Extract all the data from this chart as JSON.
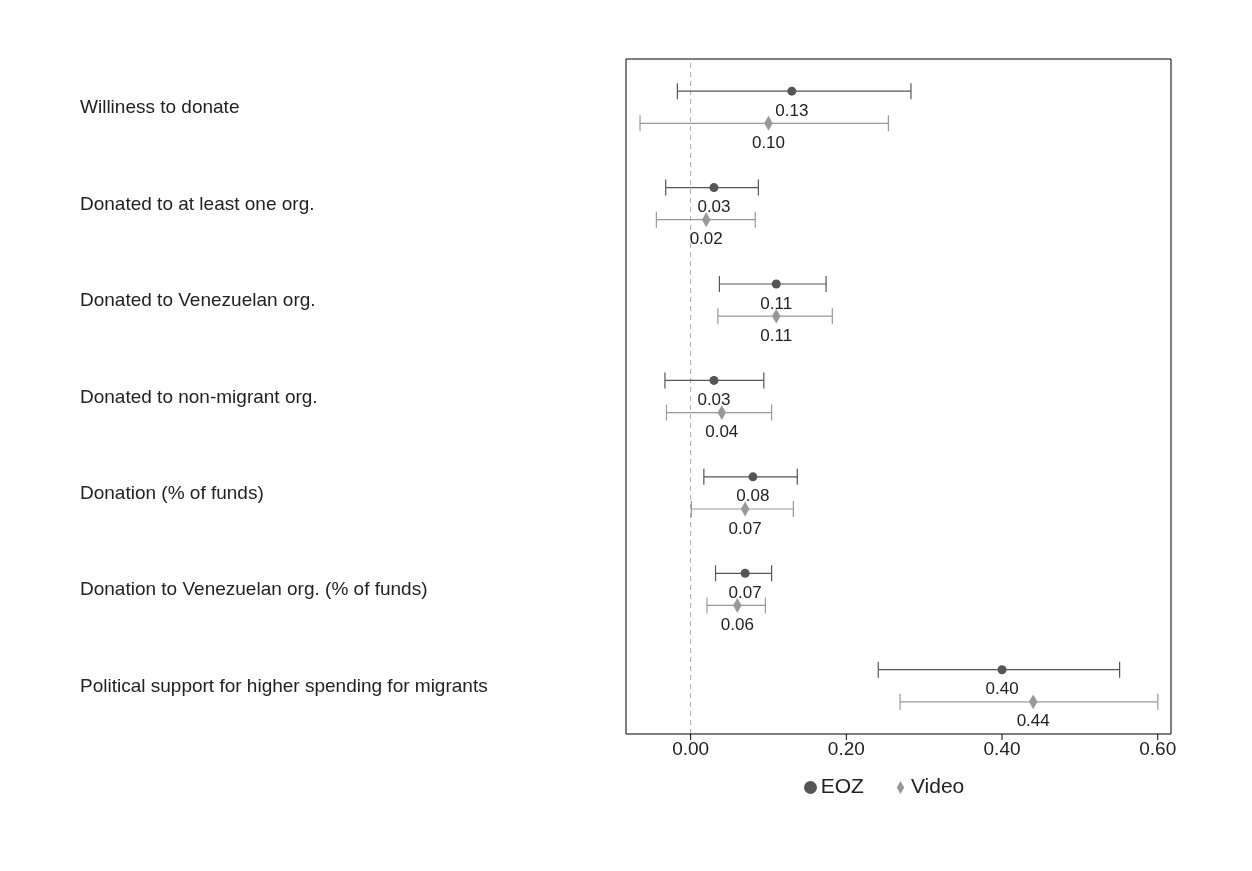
{
  "chart_data": {
    "type": "scatter",
    "orientation": "horizontal",
    "categories": [
      "Williness to donate",
      "Donated to at least one org.",
      "Donated to Venezuelan org.",
      "Donated to non-migrant org.",
      "Donation (% of funds)",
      "Donation to Venezuelan org. (% of funds)",
      "Political support for higher spending for migrants"
    ],
    "series": [
      {
        "name": "EOZ",
        "color": "#555555",
        "marker": "circle",
        "values": [
          0.13,
          0.03,
          0.11,
          0.03,
          0.08,
          0.07,
          0.4
        ],
        "value_labels": [
          "0.13",
          "0.03",
          "0.11",
          "0.03",
          "0.08",
          "0.07",
          "0.40"
        ],
        "errors": [
          [
            -0.017,
            0.283
          ],
          [
            -0.032,
            0.087
          ],
          [
            0.037,
            0.174
          ],
          [
            -0.033,
            0.094
          ],
          [
            0.017,
            0.137
          ],
          [
            0.032,
            0.104
          ],
          [
            0.241,
            0.551
          ]
        ]
      },
      {
        "name": "Video",
        "color": "#999999",
        "marker": "diamond",
        "values": [
          0.1,
          0.02,
          0.11,
          0.04,
          0.07,
          0.06,
          0.44
        ],
        "value_labels": [
          "0.10",
          "0.02",
          "0.11",
          "0.04",
          "0.07",
          "0.06",
          "0.44"
        ],
        "errors": [
          [
            -0.065,
            0.254
          ],
          [
            -0.044,
            0.083
          ],
          [
            0.035,
            0.182
          ],
          [
            -0.031,
            0.104
          ],
          [
            0.001,
            0.132
          ],
          [
            0.021,
            0.096
          ],
          [
            0.269,
            0.6
          ]
        ]
      }
    ],
    "xlim": [
      -0.083,
      0.617
    ],
    "xticks": [
      {
        "value": 0,
        "label": "0.00"
      },
      {
        "value": 0.2,
        "label": "0.20"
      },
      {
        "value": 0.4,
        "label": "0.40"
      },
      {
        "value": 0.6,
        "label": "0.60"
      }
    ],
    "ref_lines": [
      {
        "axis": "x",
        "value": 0,
        "color": "#aaaaaa",
        "line_style": "dashed"
      }
    ],
    "grid": false,
    "legend": "bottom"
  }
}
